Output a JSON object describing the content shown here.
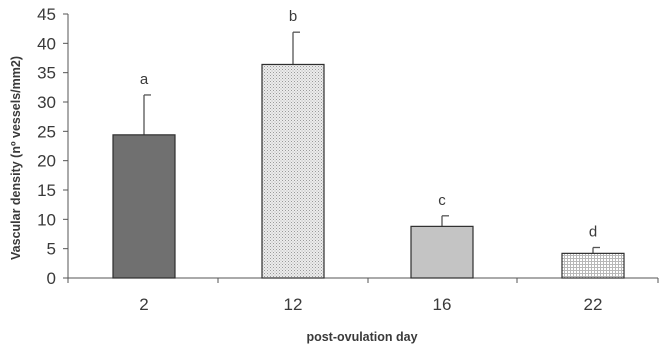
{
  "chart_data": {
    "type": "bar",
    "categories": [
      "2",
      "12",
      "16",
      "22"
    ],
    "values": [
      24.4,
      36.4,
      8.8,
      4.2
    ],
    "errors": [
      6.8,
      5.5,
      1.8,
      1.0
    ],
    "significance": [
      "a",
      "b",
      "c",
      "d"
    ],
    "bar_colors": [
      "#707070",
      "#e8e8e8",
      "#c4c4c4",
      "#ffffff"
    ],
    "bar_patterns": [
      "solid",
      "fine-dots",
      "solid",
      "grid"
    ],
    "title": "",
    "xlabel": "post-ovulation day",
    "ylabel": "Vascular density (nº vessels/mm2)",
    "ylim": [
      0,
      45
    ],
    "yticks": [
      0,
      5,
      10,
      15,
      20,
      25,
      30,
      35,
      40,
      45
    ],
    "grid": false,
    "legend": "none"
  }
}
